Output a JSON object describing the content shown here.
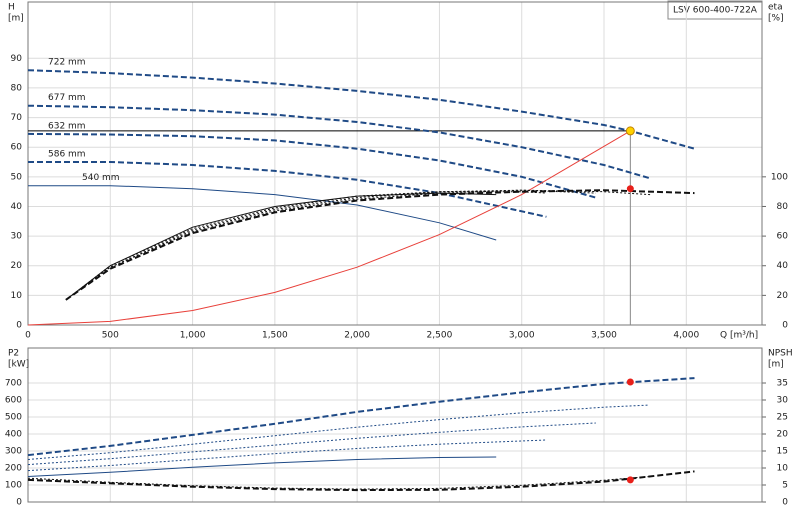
{
  "chart_data": [
    {
      "type": "line",
      "title": "LSV 600-400-722A",
      "ylabel": "H",
      "yunit": "[m]",
      "y2label": "eta",
      "y2unit": "[%]",
      "xlabel": "Q [m³/h]",
      "xlim": [
        0,
        4460
      ],
      "ylim": [
        0,
        109
      ],
      "y2lim": [
        0,
        218
      ],
      "xticks": [
        0,
        500,
        {
          "value": 1000,
          "label": "1,000"
        },
        {
          "value": 1500,
          "label": "1,500"
        },
        {
          "value": 2000,
          "label": "2,000"
        },
        {
          "value": 2500,
          "label": "2,500"
        },
        {
          "value": 3000,
          "label": "3,000"
        },
        {
          "value": 3500,
          "label": "3,500"
        },
        {
          "value": 4000,
          "label": "4,000"
        }
      ],
      "yticks": [
        0,
        10,
        20,
        30,
        40,
        50,
        60,
        70,
        80,
        90
      ],
      "y2ticks": [
        0,
        20,
        40,
        60,
        80,
        100
      ],
      "grid": true,
      "series": [
        {
          "name": "722 mm",
          "color": "#1f4a86",
          "line_style": "dashed",
          "x": [
            0,
            500,
            1000,
            1500,
            2000,
            2500,
            3000,
            3500,
            3660,
            4050
          ],
          "values": [
            86,
            85,
            83.5,
            81.5,
            79,
            76,
            72,
            67.5,
            65.5,
            59.5
          ]
        },
        {
          "name": "677 mm",
          "color": "#1f4a86",
          "line_style": "dashed",
          "x": [
            0,
            500,
            1000,
            1500,
            2000,
            2500,
            3000,
            3500,
            3780
          ],
          "values": [
            74,
            73.5,
            72.5,
            71,
            68.5,
            65,
            60,
            54,
            49.5
          ]
        },
        {
          "name": "632 mm",
          "color": "#1f4a86",
          "line_style": "dashed",
          "x": [
            0,
            500,
            1000,
            1500,
            2000,
            2500,
            3000,
            3450
          ],
          "values": [
            64.5,
            64.3,
            63.7,
            62.3,
            59.5,
            55.5,
            50,
            43
          ]
        },
        {
          "name": "586 mm",
          "color": "#1f4a86",
          "line_style": "dashed",
          "x": [
            0,
            500,
            1000,
            1500,
            2000,
            2500,
            3150
          ],
          "values": [
            55,
            55,
            54,
            52,
            49,
            44.5,
            36.5
          ]
        },
        {
          "name": "540 mm",
          "color": "#1f4a86",
          "line_style": "solid",
          "x": [
            0,
            500,
            1000,
            1500,
            2000,
            2500,
            2845
          ],
          "values": [
            47,
            47,
            46,
            44,
            40.5,
            34.5,
            28.7
          ]
        },
        {
          "color": "#e8403a",
          "line_style": "solid",
          "x": [
            0,
            500,
            1000,
            1500,
            2000,
            2500,
            3000,
            3660
          ],
          "values": [
            0,
            1.2,
            4.9,
            11,
            19.5,
            30.5,
            44,
            65.5
          ]
        },
        {
          "axis": "y2",
          "color": "#111111",
          "line_style": "dashed",
          "x": [
            230,
            500,
            1000,
            1500,
            2000,
            2500,
            3000,
            3500,
            4050
          ],
          "values": [
            17,
            38,
            62,
            76,
            84,
            88,
            90,
            91,
            89
          ]
        },
        {
          "axis": "y2",
          "color": "#111111",
          "line_style": "dotted",
          "x": [
            230,
            500,
            1000,
            1500,
            2000,
            2500,
            3000,
            3500,
            3780
          ],
          "values": [
            17,
            39,
            63,
            77,
            85,
            89,
            91,
            90,
            88
          ]
        },
        {
          "axis": "y2",
          "color": "#111111",
          "line_style": "dotted",
          "x": [
            230,
            500,
            1000,
            1500,
            2000,
            2500,
            3000,
            3450
          ],
          "values": [
            17,
            39,
            64,
            78,
            86,
            90,
            91,
            89
          ]
        },
        {
          "axis": "y2",
          "color": "#111111",
          "line_style": "dotted",
          "x": [
            230,
            500,
            1000,
            1500,
            2000,
            2500,
            3000,
            3150
          ],
          "values": [
            17,
            40,
            65,
            79,
            87,
            90,
            90,
            89
          ]
        },
        {
          "axis": "y2",
          "color": "#111111",
          "line_style": "solid",
          "x": [
            230,
            500,
            1000,
            1500,
            2000,
            2500,
            2845
          ],
          "values": [
            17,
            40,
            66,
            80,
            87,
            89,
            88
          ]
        }
      ],
      "operating_point": {
        "x": 3660,
        "y": 65.5,
        "color": "#ffd200"
      },
      "markers": [
        {
          "x": 3660,
          "y": 92,
          "axis": "y2",
          "color": "#e8201a"
        }
      ]
    },
    {
      "type": "line",
      "ylabel": "P2",
      "yunit": "[kW]",
      "y2label": "NPSH",
      "y2unit": "[m]",
      "xlim": [
        0,
        4460
      ],
      "ylim": [
        0,
        906
      ],
      "y2lim": [
        0,
        45.3
      ],
      "yticks": [
        0,
        100,
        200,
        300,
        400,
        500,
        600,
        700
      ],
      "y2ticks": [
        0,
        5,
        10,
        15,
        20,
        25,
        30,
        35
      ],
      "grid": true,
      "series": [
        {
          "color": "#1f4a86",
          "line_style": "dashed",
          "x": [
            0,
            500,
            1000,
            1500,
            2000,
            2500,
            3000,
            3500,
            4050
          ],
          "values": [
            276,
            330,
            395,
            460,
            530,
            590,
            645,
            695,
            729
          ]
        },
        {
          "color": "#1f4a86",
          "line_style": "dotted",
          "x": [
            0,
            500,
            1000,
            1500,
            2000,
            2500,
            3000,
            3500,
            3770
          ],
          "values": [
            250,
            290,
            340,
            390,
            440,
            485,
            525,
            558,
            570
          ]
        },
        {
          "color": "#1f4a86",
          "line_style": "dotted",
          "x": [
            0,
            500,
            1000,
            1500,
            2000,
            2500,
            3000,
            3450
          ],
          "values": [
            220,
            255,
            295,
            335,
            375,
            410,
            442,
            465
          ]
        },
        {
          "color": "#1f4a86",
          "line_style": "dotted",
          "x": [
            0,
            500,
            1000,
            1500,
            2000,
            2500,
            3150
          ],
          "values": [
            185,
            215,
            250,
            285,
            315,
            340,
            365
          ]
        },
        {
          "color": "#1f4a86",
          "line_style": "solid",
          "x": [
            0,
            500,
            1000,
            1500,
            2000,
            2500,
            2845
          ],
          "values": [
            150,
            175,
            205,
            230,
            250,
            262,
            265
          ]
        },
        {
          "axis": "y2",
          "color": "#111111",
          "line_style": "dashed",
          "x": [
            0,
            500,
            1000,
            1500,
            2000,
            2500,
            3000,
            3500,
            4050
          ],
          "values": [
            6.5,
            5.5,
            4.5,
            3.8,
            3.5,
            3.6,
            4.5,
            6,
            9
          ]
        },
        {
          "axis": "y2",
          "color": "#111111",
          "line_style": "dotted",
          "x": [
            0,
            500,
            1000,
            1500,
            2000,
            2500,
            3000,
            3500,
            3780
          ],
          "values": [
            7,
            5.8,
            4.8,
            4.1,
            3.8,
            4,
            4.9,
            6.4,
            7.5
          ]
        }
      ],
      "markers": [
        {
          "x": 3660,
          "y": 706,
          "color": "#e8201a"
        },
        {
          "x": 3660,
          "y": 6.5,
          "axis": "y2",
          "color": "#e8201a"
        }
      ]
    }
  ]
}
